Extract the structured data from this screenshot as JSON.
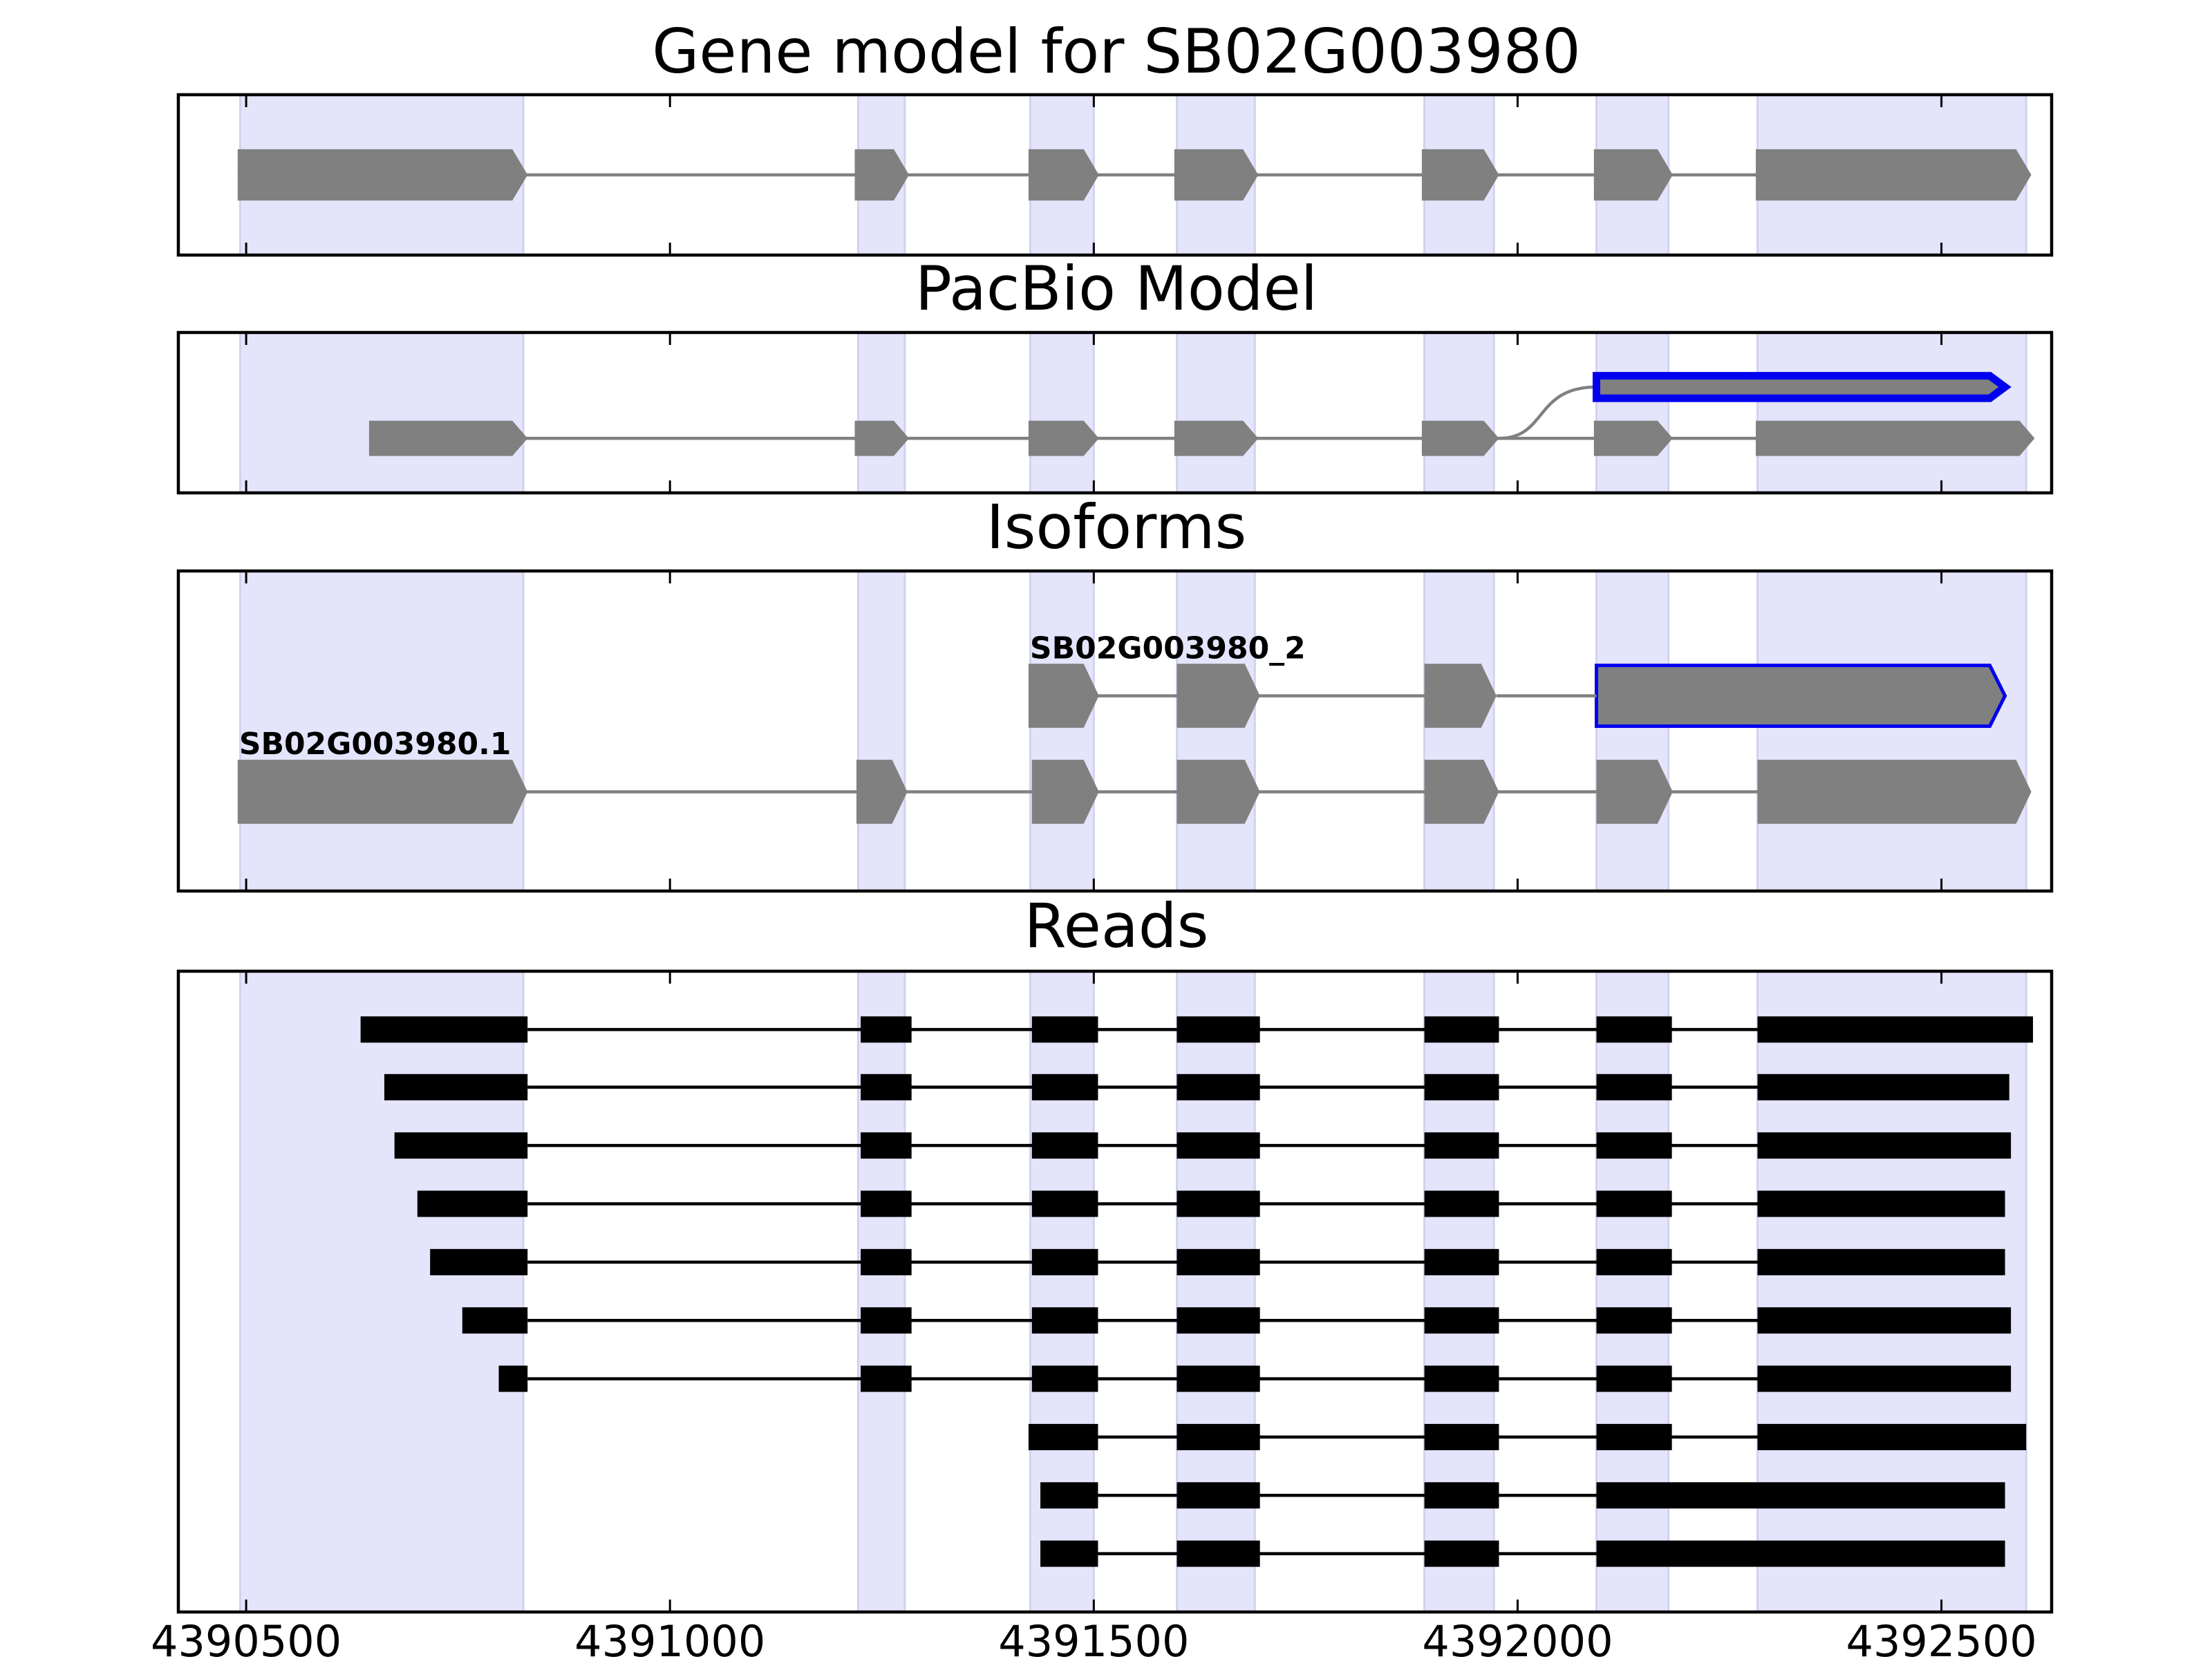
{
  "chart_data": {
    "type": "gene-structure",
    "x_range": [
      4390420,
      4392630
    ],
    "x_ticks": [
      4390500,
      4391000,
      4391500,
      4392000,
      4392500
    ],
    "x_tick_labels": [
      "4390500",
      "4391000",
      "4391500",
      "4392000",
      "4392500"
    ],
    "exon_regions": [
      [
        4390493,
        4390827
      ],
      [
        4391222,
        4391277
      ],
      [
        4391425,
        4391500
      ],
      [
        4391598,
        4391690
      ],
      [
        4391890,
        4391972
      ],
      [
        4392093,
        4392178
      ],
      [
        4392283,
        4392600
      ]
    ],
    "colors": {
      "exon_region": "#e4e4fb",
      "exon_region_edge": "#d2d2f0",
      "feature": "#808080",
      "highlight": "#0000ee",
      "read": "#000000"
    },
    "panels": [
      {
        "id": "gene-model",
        "title": "Gene model for SB02G003980",
        "tracks": [
          {
            "y": 0.5,
            "h": 0.32,
            "highlight": false,
            "exons": [
              [
                4390490,
                4390832
              ],
              [
                4391218,
                4391282
              ],
              [
                4391423,
                4391506
              ],
              [
                4391595,
                4391694
              ],
              [
                4391887,
                4391978
              ],
              [
                4392090,
                4392183
              ],
              [
                4392281,
                4392606
              ]
            ]
          }
        ]
      },
      {
        "id": "pacbio-model",
        "title": "PacBio Model",
        "tracks": [
          {
            "y": 0.66,
            "h": 0.22,
            "highlight": false,
            "exons": [
              [
                4390645,
                4390832
              ],
              [
                4391218,
                4391282
              ],
              [
                4391423,
                4391506
              ],
              [
                4391595,
                4391694
              ],
              [
                4391887,
                4391978
              ],
              [
                4392090,
                4392183
              ],
              [
                4392281,
                4392610
              ]
            ]
          },
          {
            "y": 0.34,
            "h": 0.14,
            "highlight": true,
            "branch_from": [
              4391978,
              0.66
            ],
            "exons": [
              [
                4392093,
                4392575
              ]
            ]
          }
        ]
      },
      {
        "id": "isoforms",
        "title": "Isoforms",
        "tracks": [
          {
            "y": 0.69,
            "h": 0.2,
            "highlight": false,
            "label": "SB02G003980.1",
            "exons": [
              [
                4390490,
                4390832
              ],
              [
                4391220,
                4391280
              ],
              [
                4391427,
                4391506
              ],
              [
                4391598,
                4391696
              ],
              [
                4391890,
                4391978
              ],
              [
                4392093,
                4392183
              ],
              [
                4392283,
                4392606
              ]
            ]
          },
          {
            "y": 0.39,
            "h": 0.2,
            "highlight": false,
            "label": "SB02G003980_2",
            "exons": [
              [
                4391423,
                4391506
              ],
              [
                4391598,
                4391696
              ],
              [
                4391890,
                4391975
              ]
            ]
          },
          {
            "y": 0.39,
            "h": 0.19,
            "highlight": true,
            "exons": [
              [
                4392093,
                4392575
              ]
            ]
          }
        ]
      },
      {
        "id": "reads",
        "title": "Reads",
        "tracks": [
          {
            "y": 0.091,
            "exons": [
              [
                4390635,
                4390832
              ],
              [
                4391225,
                4391285
              ],
              [
                4391427,
                4391505
              ],
              [
                4391598,
                4391696
              ],
              [
                4391890,
                4391978
              ],
              [
                4392093,
                4392182
              ],
              [
                4392283,
                4392608
              ]
            ]
          },
          {
            "y": 0.181,
            "exons": [
              [
                4390663,
                4390832
              ],
              [
                4391225,
                4391285
              ],
              [
                4391427,
                4391505
              ],
              [
                4391598,
                4391696
              ],
              [
                4391890,
                4391978
              ],
              [
                4392093,
                4392182
              ],
              [
                4392283,
                4392580
              ]
            ]
          },
          {
            "y": 0.272,
            "exons": [
              [
                4390675,
                4390832
              ],
              [
                4391225,
                4391285
              ],
              [
                4391427,
                4391505
              ],
              [
                4391598,
                4391696
              ],
              [
                4391890,
                4391978
              ],
              [
                4392093,
                4392182
              ],
              [
                4392283,
                4392582
              ]
            ]
          },
          {
            "y": 0.363,
            "exons": [
              [
                4390702,
                4390832
              ],
              [
                4391225,
                4391285
              ],
              [
                4391427,
                4391505
              ],
              [
                4391598,
                4391696
              ],
              [
                4391890,
                4391978
              ],
              [
                4392093,
                4392182
              ],
              [
                4392283,
                4392575
              ]
            ]
          },
          {
            "y": 0.454,
            "exons": [
              [
                4390717,
                4390832
              ],
              [
                4391225,
                4391285
              ],
              [
                4391427,
                4391505
              ],
              [
                4391598,
                4391696
              ],
              [
                4391890,
                4391978
              ],
              [
                4392093,
                4392182
              ],
              [
                4392283,
                4392575
              ]
            ]
          },
          {
            "y": 0.545,
            "exons": [
              [
                4390755,
                4390832
              ],
              [
                4391225,
                4391285
              ],
              [
                4391427,
                4391505
              ],
              [
                4391598,
                4391696
              ],
              [
                4391890,
                4391978
              ],
              [
                4392093,
                4392182
              ],
              [
                4392283,
                4392582
              ]
            ]
          },
          {
            "y": 0.636,
            "exons": [
              [
                4390798,
                4390832
              ],
              [
                4391225,
                4391285
              ],
              [
                4391427,
                4391505
              ],
              [
                4391598,
                4391696
              ],
              [
                4391890,
                4391978
              ],
              [
                4392093,
                4392182
              ],
              [
                4392283,
                4392582
              ]
            ]
          },
          {
            "y": 0.727,
            "exons": [
              [
                4391423,
                4391505
              ],
              [
                4391598,
                4391696
              ],
              [
                4391890,
                4391978
              ],
              [
                4392093,
                4392182
              ],
              [
                4392283,
                4392600
              ]
            ]
          },
          {
            "y": 0.818,
            "exons": [
              [
                4391437,
                4391505
              ],
              [
                4391598,
                4391696
              ],
              [
                4391890,
                4391978
              ],
              [
                4392093,
                4392575
              ]
            ]
          },
          {
            "y": 0.909,
            "exons": [
              [
                4391437,
                4391505
              ],
              [
                4391598,
                4391696
              ],
              [
                4391890,
                4391978
              ],
              [
                4392093,
                4392575
              ]
            ]
          }
        ]
      }
    ]
  }
}
